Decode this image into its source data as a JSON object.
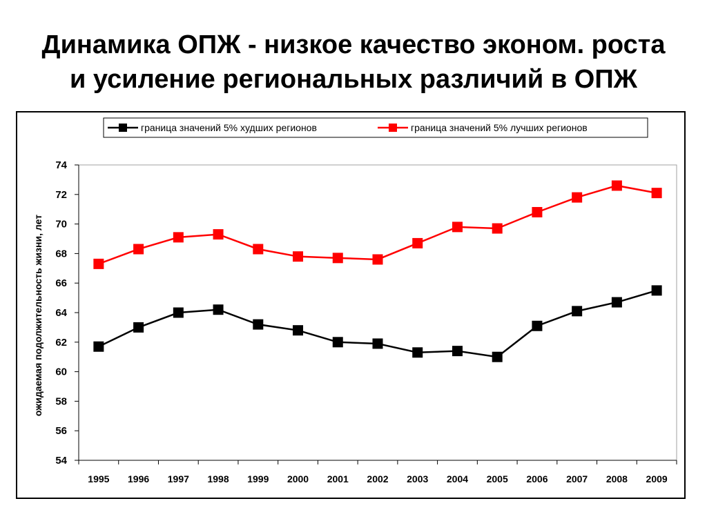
{
  "slide": {
    "title_line1": "Динамика ОПЖ - низкое качество эконом. роста",
    "title_line2": "и усиление региональных различий в ОПЖ"
  },
  "chart_data": {
    "type": "line",
    "ylabel": "ожидаемая подолжительность жизни, лет",
    "ylim": [
      54,
      74
    ],
    "yticks": [
      54,
      56,
      58,
      60,
      62,
      64,
      66,
      68,
      70,
      72,
      74
    ],
    "categories": [
      "1995",
      "1996",
      "1997",
      "1998",
      "1999",
      "2000",
      "2001",
      "2002",
      "2003",
      "2004",
      "2005",
      "2006",
      "2007",
      "2008",
      "2009"
    ],
    "grid": false,
    "legend_position": "top",
    "series": [
      {
        "name": "граница значений 5% худших регионов",
        "color": "#000000",
        "marker": "square",
        "values": [
          61.7,
          63.0,
          64.0,
          64.2,
          63.2,
          62.8,
          62.0,
          61.9,
          61.3,
          61.4,
          61.0,
          63.1,
          64.1,
          64.7,
          65.5
        ]
      },
      {
        "name": "граница значений 5% лучших регионов",
        "color": "#ff0000",
        "marker": "square",
        "values": [
          67.3,
          68.3,
          69.1,
          69.3,
          68.3,
          67.8,
          67.7,
          67.6,
          68.7,
          69.8,
          69.7,
          70.8,
          71.8,
          72.6,
          72.1
        ]
      }
    ]
  }
}
